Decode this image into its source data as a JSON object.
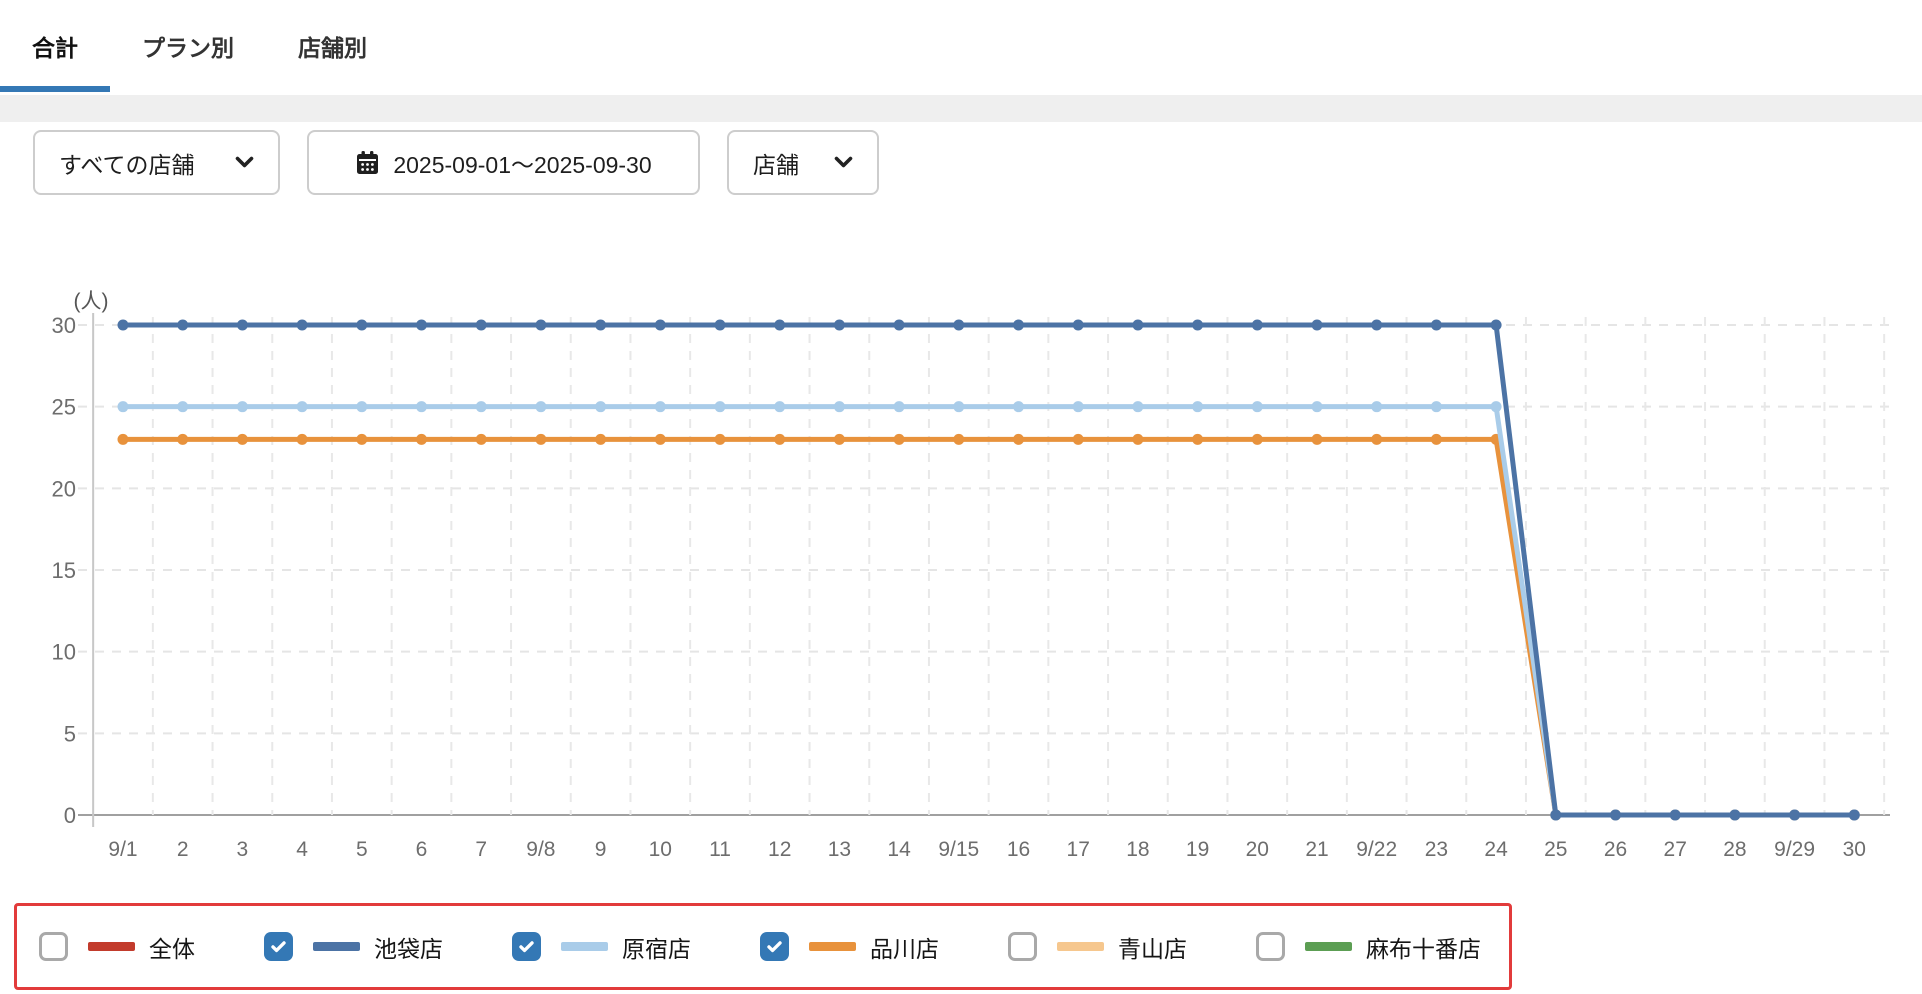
{
  "tabs": [
    {
      "label": "合計",
      "active": true
    },
    {
      "label": "プラン別",
      "active": false
    },
    {
      "label": "店舗別",
      "active": false
    }
  ],
  "filters": {
    "store_select": {
      "value": "すべての店舗"
    },
    "date_range": {
      "value": "2025-09-01～2025-09-30"
    },
    "group_select": {
      "value": "店舗"
    }
  },
  "chart_data": {
    "type": "line",
    "title": "",
    "unit_label": "(人)",
    "xlabel": "",
    "ylabel": "(人)",
    "ylim": [
      0,
      30
    ],
    "yticks": [
      0,
      5,
      10,
      15,
      20,
      25,
      30
    ],
    "grid": "dashed",
    "legend_position": "bottom",
    "x_labels": [
      "9/1",
      "2",
      "3",
      "4",
      "5",
      "6",
      "7",
      "9/8",
      "9",
      "10",
      "11",
      "12",
      "13",
      "14",
      "9/15",
      "16",
      "17",
      "18",
      "19",
      "20",
      "21",
      "9/22",
      "23",
      "24",
      "25",
      "26",
      "27",
      "28",
      "9/29",
      "30"
    ],
    "series": [
      {
        "name": "品川店",
        "color": "#E8923C",
        "values": [
          23,
          23,
          23,
          23,
          23,
          23,
          23,
          23,
          23,
          23,
          23,
          23,
          23,
          23,
          23,
          23,
          23,
          23,
          23,
          23,
          23,
          23,
          23,
          23,
          0,
          0,
          0,
          0,
          0,
          0
        ]
      },
      {
        "name": "原宿店",
        "color": "#A9CCE9",
        "values": [
          25,
          25,
          25,
          25,
          25,
          25,
          25,
          25,
          25,
          25,
          25,
          25,
          25,
          25,
          25,
          25,
          25,
          25,
          25,
          25,
          25,
          25,
          25,
          25,
          0,
          0,
          0,
          0,
          0,
          0
        ]
      },
      {
        "name": "池袋店",
        "color": "#4C73A5",
        "values": [
          30,
          30,
          30,
          30,
          30,
          30,
          30,
          30,
          30,
          30,
          30,
          30,
          30,
          30,
          30,
          30,
          30,
          30,
          30,
          30,
          30,
          30,
          30,
          30,
          0,
          0,
          0,
          0,
          0,
          0
        ]
      }
    ]
  },
  "legend": {
    "border_color": "#E23B3B",
    "items": [
      {
        "label": "全体",
        "color": "#C23B2C",
        "checked": false
      },
      {
        "label": "池袋店",
        "color": "#4C73A5",
        "checked": true
      },
      {
        "label": "原宿店",
        "color": "#A9CCE9",
        "checked": true
      },
      {
        "label": "品川店",
        "color": "#E8923C",
        "checked": true
      },
      {
        "label": "青山店",
        "color": "#F6C78E",
        "checked": false
      },
      {
        "label": "麻布十番店",
        "color": "#5C9E53",
        "checked": false
      }
    ]
  },
  "colors": {
    "accent_blue": "#3478B5",
    "grid_line": "#E5E5E5",
    "axis_line": "#C7C7C7",
    "zero_line": "#A0A0A0",
    "tick_text": "#6D6D6D",
    "strip_gray": "#EFEFEF"
  }
}
